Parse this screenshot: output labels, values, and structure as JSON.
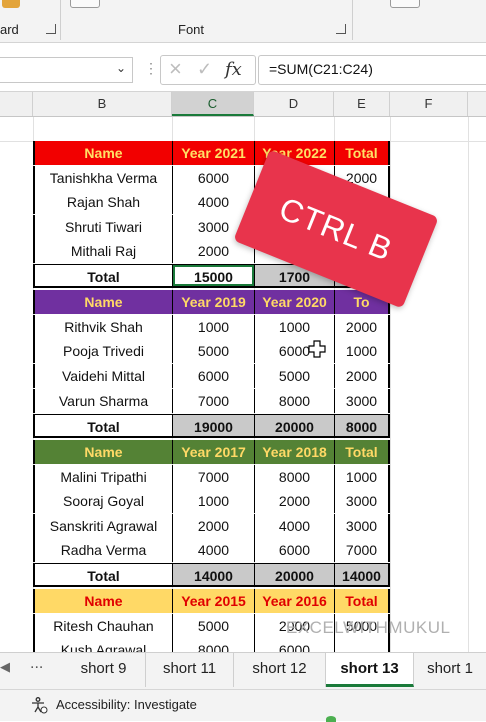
{
  "ribbon": {
    "clipboard_label": "ard",
    "font_label": "Font"
  },
  "formula_bar": {
    "name_box": "",
    "formula": "=SUM(C21:C24)"
  },
  "columns": [
    "B",
    "C",
    "D",
    "E",
    "F"
  ],
  "selected_column": "C",
  "tables": [
    {
      "header_color": "#f20000",
      "header_text_color": "#ffe066",
      "header": [
        "Name",
        "Year 2021",
        "Year 2022",
        "Total"
      ],
      "rows": [
        [
          "Tanishkha Verma",
          "6000",
          "",
          "2000"
        ],
        [
          "Rajan Shah",
          "4000",
          "",
          "000"
        ],
        [
          "Shruti Tiwari",
          "3000",
          "",
          ""
        ],
        [
          "Mithali Raj",
          "2000",
          "",
          ""
        ]
      ],
      "total": [
        "Total",
        "15000",
        "1700",
        ""
      ]
    },
    {
      "header_color": "#7030a0",
      "header_text_color": "#ffd966",
      "header": [
        "Name",
        "Year 2019",
        "Year 2020",
        "To"
      ],
      "rows": [
        [
          "Rithvik Shah",
          "1000",
          "1000",
          "2000"
        ],
        [
          "Pooja Trivedi",
          "5000",
          "6000",
          "1000"
        ],
        [
          "Vaidehi Mittal",
          "6000",
          "5000",
          "2000"
        ],
        [
          "Varun Sharma",
          "7000",
          "8000",
          "3000"
        ]
      ],
      "total": [
        "Total",
        "19000",
        "20000",
        "8000"
      ]
    },
    {
      "header_color": "#548235",
      "header_text_color": "#ffd966",
      "header": [
        "Name",
        "Year 2017",
        "Year 2018",
        "Total"
      ],
      "rows": [
        [
          "Malini Tripathi",
          "7000",
          "8000",
          "1000"
        ],
        [
          "Sooraj Goyal",
          "1000",
          "2000",
          "3000"
        ],
        [
          "Sanskriti Agrawal",
          "2000",
          "4000",
          "3000"
        ],
        [
          "Radha Verma",
          "4000",
          "6000",
          "7000"
        ]
      ],
      "total": [
        "Total",
        "14000",
        "20000",
        "14000"
      ]
    },
    {
      "header_color": "#ffd966",
      "header_text_color": "#e00000",
      "header": [
        "Name",
        "Year 2015",
        "Year 2016",
        "Total"
      ],
      "rows": [
        [
          "Ritesh Chauhan",
          "5000",
          "2000",
          "5000"
        ],
        [
          "Kush Agrawal",
          "8000",
          "6000",
          "..."
        ]
      ],
      "total": null
    }
  ],
  "overlay": {
    "text": "CTRL B",
    "color": "#e8344c"
  },
  "watermark": "EXCELWITHMUKUL",
  "sheet_tabs": [
    "short 9",
    "short 11",
    "short 12",
    "short 13",
    "short 1"
  ],
  "active_tab": "short 13",
  "more_tabs_label": "...",
  "status": {
    "accessibility": "Accessibility: Investigate"
  }
}
